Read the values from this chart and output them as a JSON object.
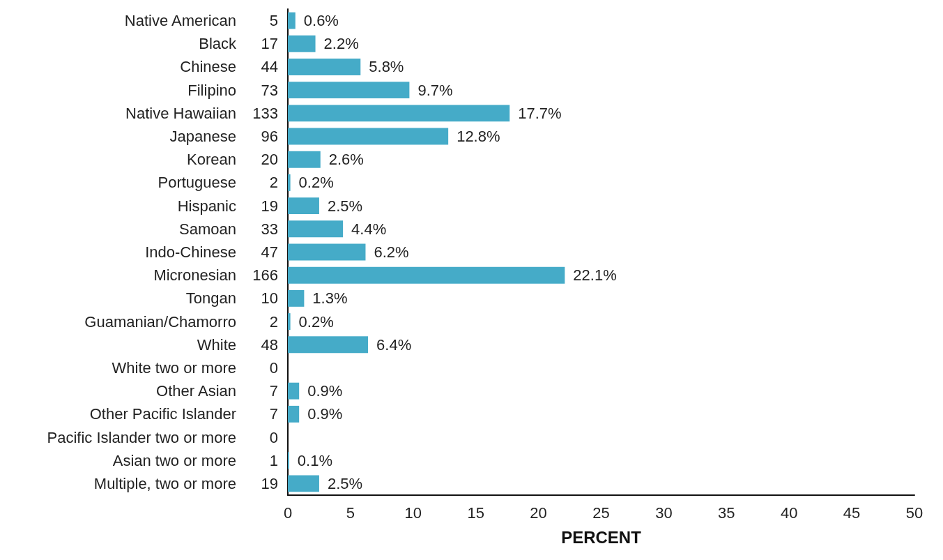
{
  "chart_data": {
    "type": "bar",
    "orientation": "horizontal",
    "xlabel": "PERCENT",
    "categories": [
      "Native American",
      "Black",
      "Chinese",
      "Filipino",
      "Native Hawaiian",
      "Japanese",
      "Korean",
      "Portuguese",
      "Hispanic",
      "Samoan",
      "Indo-Chinese",
      "Micronesian",
      "Tongan",
      "Guamanian/Chamorro",
      "White",
      "White two or more",
      "Other Asian",
      "Other Pacific Islander",
      "Pacific Islander two or more",
      "Asian two or more",
      "Multiple, two or more"
    ],
    "values": [
      0.6,
      2.2,
      5.8,
      9.7,
      17.7,
      12.8,
      2.6,
      0.2,
      2.5,
      4.4,
      6.2,
      22.1,
      1.3,
      0.2,
      6.4,
      0,
      0.9,
      0.9,
      0,
      0.1,
      2.5
    ],
    "value_labels": [
      "0.6%",
      "2.2%",
      "5.8%",
      "9.7%",
      "17.7%",
      "12.8%",
      "2.6%",
      "0.2%",
      "2.5%",
      "4.4%",
      "6.2%",
      "22.1%",
      "1.3%",
      "0.2%",
      "6.4%",
      null,
      "0.9%",
      "0.9%",
      null,
      "0.1%",
      "2.5%"
    ],
    "color": "#45abc8",
    "xlim": [
      0,
      50
    ],
    "xticks": [
      0,
      5,
      10,
      15,
      20,
      25,
      30,
      35,
      40,
      45,
      50
    ],
    "grid": false,
    "annotations": [
      "5",
      "17",
      "44",
      "73",
      "133",
      "96",
      "20",
      "2",
      "19",
      "33",
      "47",
      "166",
      "10",
      "2",
      "48",
      "0",
      "7",
      "7",
      "0",
      "1",
      "19"
    ]
  }
}
